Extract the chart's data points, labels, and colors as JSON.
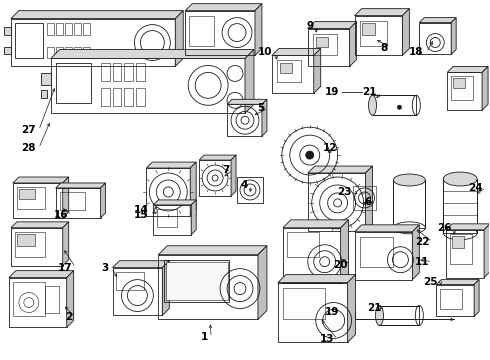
{
  "bg_color": "#ffffff",
  "line_color": "#1a1a1a",
  "fig_width": 4.9,
  "fig_height": 3.6,
  "dpi": 100,
  "lw_main": 0.6,
  "lw_thin": 0.4,
  "gray_light": "#d8d8d8",
  "gray_mid": "#c0c0c0",
  "gray_dark": "#a0a0a0",
  "hatch_color": "#888888"
}
